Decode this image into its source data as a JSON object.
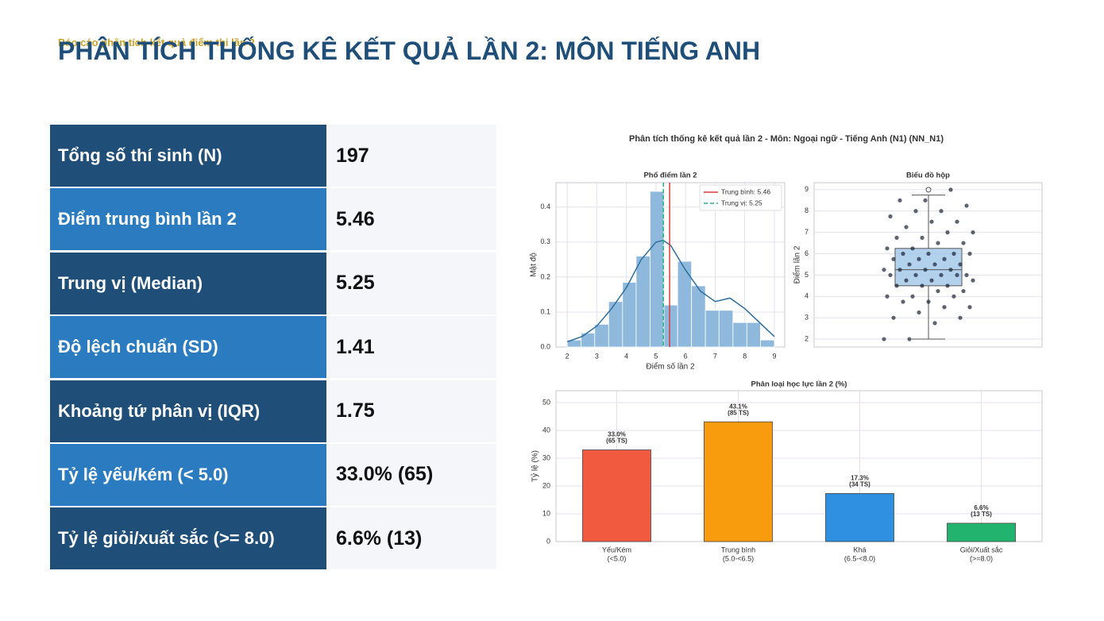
{
  "header": {
    "subtitle": "Báo cáo phân tích kết quả điểm thi lần 2",
    "title": "PHÂN TÍCH THỐNG KÊ KẾT QUẢ LẦN 2: MÔN TIẾNG ANH"
  },
  "table": {
    "rows": [
      [
        "Tổng số thí sinh (N)",
        "197"
      ],
      [
        "Điểm trung bình lần 2",
        "5.46"
      ],
      [
        "Trung vị (Median)",
        "5.25"
      ],
      [
        "Độ lệch chuẩn (SD)",
        "1.41"
      ],
      [
        "Khoảng tứ phân vị (IQR)",
        "1.75"
      ],
      [
        "Tỷ lệ yếu/kém (< 5.0)",
        "33.0% (65)"
      ],
      [
        "Tỷ lệ giỏi/xuất sắc (>= 8.0)",
        "6.6% (13)"
      ]
    ]
  },
  "figure_title": "Phân tích thống kê kết quả lần 2 - Môn: Ngoại ngữ - Tiếng Anh (N1) (NN_N1)",
  "chart_data": [
    {
      "type": "histogram",
      "title": "Phổ điểm lần 2",
      "xlabel": "Điểm số lần 2",
      "ylabel": "Mật độ",
      "bins": [
        2,
        2.47,
        2.93,
        3.4,
        3.87,
        4.33,
        4.8,
        5.27,
        5.73,
        6.2,
        6.67,
        7.13,
        7.6,
        8.07,
        8.53,
        9
      ],
      "values": [
        0.02,
        0.04,
        0.065,
        0.13,
        0.185,
        0.26,
        0.445,
        0.12,
        0.245,
        0.175,
        0.105,
        0.105,
        0.07,
        0.07,
        0.02
      ],
      "color": "#8fb9dc",
      "kde": {
        "x": [
          2,
          2.5,
          3,
          3.5,
          4,
          4.5,
          5,
          5.25,
          5.5,
          6,
          6.5,
          7,
          7.5,
          8,
          8.5,
          9
        ],
        "y": [
          0.015,
          0.03,
          0.06,
          0.11,
          0.17,
          0.25,
          0.3,
          0.305,
          0.29,
          0.22,
          0.16,
          0.13,
          0.14,
          0.11,
          0.07,
          0.03
        ],
        "color": "#2e6f9e"
      },
      "mean": {
        "value": 5.46,
        "label": "Trung bình: 5.46",
        "color": "#e03a3a"
      },
      "median": {
        "value": 5.25,
        "label": "Trung vị: 5.25",
        "color": "#2bb57a"
      },
      "xlim": [
        1.62,
        9.35
      ],
      "ylim": [
        0,
        0.47
      ],
      "xticks": [
        2,
        3,
        4,
        5,
        6,
        7,
        8,
        9
      ],
      "yticks": [
        {
          "value": 0,
          "label": "0.0"
        },
        0.1,
        0.2,
        0.3,
        0.4
      ],
      "grid": true,
      "legend": "upper right"
    },
    {
      "type": "box",
      "title": "Biểu đồ hộp",
      "ylabel": "Điểm lần 2",
      "whislo": 2,
      "q1": 4.5,
      "median": 5.25,
      "q3": 6.25,
      "whishi": 8.75,
      "fliers": [
        9
      ],
      "points": [
        2,
        2,
        2.75,
        3,
        3,
        3.25,
        3.5,
        3.5,
        3.75,
        3.75,
        4,
        4,
        4,
        4.25,
        4.25,
        4.5,
        4.5,
        4.5,
        4.75,
        4.75,
        4.75,
        5,
        5,
        5,
        5,
        5,
        5.25,
        5.25,
        5.25,
        5.25,
        5.5,
        5.5,
        5.5,
        5.75,
        5.75,
        5.75,
        6,
        6,
        6,
        6,
        6.25,
        6.25,
        6.5,
        6.5,
        6.75,
        6.75,
        7,
        7,
        7.25,
        7.5,
        7.5,
        7.75,
        8,
        8,
        8.25,
        8.5,
        8.5,
        9
      ],
      "color": "#9fc5e8",
      "point_color": "#1a2233",
      "ylim": [
        1.63,
        9.33
      ],
      "yticks": [
        2,
        3,
        4,
        5,
        6,
        7,
        8,
        9
      ],
      "grid": true
    },
    {
      "type": "bar",
      "title": "Phân loại học lực lần 2 (%)",
      "ylabel": "Tỷ lệ (%)",
      "categories": [
        "Yếu/Kém",
        "Trung bình",
        "Khá",
        "Giỏi/Xuất sắc"
      ],
      "category_ranges": [
        "(<5.0)",
        "(5.0-<6.5)",
        "(6.5-<8.0)",
        "(>=8.0)"
      ],
      "values": [
        33.0,
        43.1,
        17.3,
        6.6
      ],
      "value_labels": [
        "33.0%",
        "43.1%",
        "17.3%",
        "6.6%"
      ],
      "count_labels": [
        "(65 TS)",
        "(85 TS)",
        "(34 TS)",
        "(13 TS)"
      ],
      "colors": [
        "#f15a3f",
        "#f89c0e",
        "#2f8fe0",
        "#22b46e"
      ],
      "ylim": [
        0,
        54.3
      ],
      "yticks": [
        0,
        10,
        20,
        30,
        40,
        50
      ],
      "grid": true
    }
  ]
}
